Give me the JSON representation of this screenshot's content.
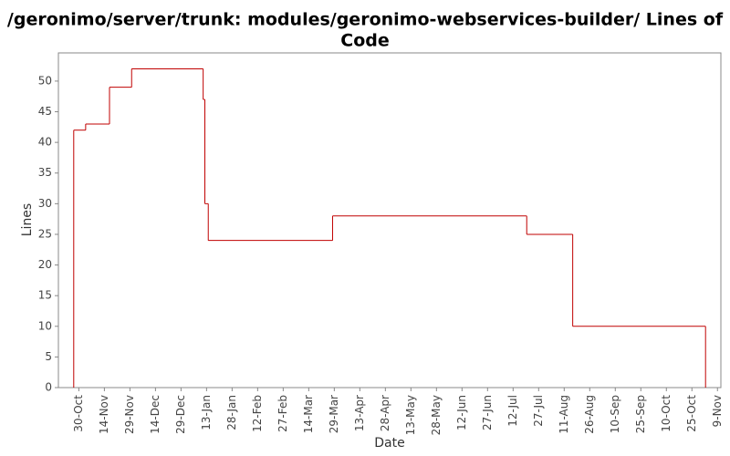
{
  "chart_data": {
    "type": "step",
    "title": "/geronimo/server/trunk: modules/geronimo-webservices-builder/ Lines of Code",
    "x_label": "Date",
    "y_label": "Lines",
    "series": [
      {
        "name": "Lines",
        "color": "#c00000",
        "x": [
          "27-Oct",
          "3-Nov",
          "17-Nov",
          "30-Nov",
          "11-Jan",
          "12-Jan",
          "14-Jan",
          "28-Mar",
          "20-Jul",
          "16-Aug",
          "2-Nov"
        ],
        "values": [
          42,
          43,
          49,
          52,
          47,
          30,
          24,
          28,
          25,
          10,
          0
        ]
      }
    ],
    "xlim": [
      "18-Oct",
      "11-Nov"
    ],
    "xticks": [
      "30-Oct",
      "14-Nov",
      "29-Nov",
      "14-Dec",
      "29-Dec",
      "13-Jan",
      "28-Jan",
      "12-Feb",
      "27-Feb",
      "14-Mar",
      "29-Mar",
      "13-Apr",
      "28-Apr",
      "13-May",
      "28-May",
      "12-Jun",
      "27-Jun",
      "12-Jul",
      "27-Jul",
      "11-Aug",
      "26-Aug",
      "10-Sep",
      "25-Sep",
      "10-Oct",
      "25-Oct",
      "9-Nov"
    ],
    "ylim": [
      0,
      54.6
    ],
    "yticks": [
      0,
      5,
      10,
      15,
      20,
      25,
      30,
      35,
      40,
      45,
      50
    ]
  }
}
